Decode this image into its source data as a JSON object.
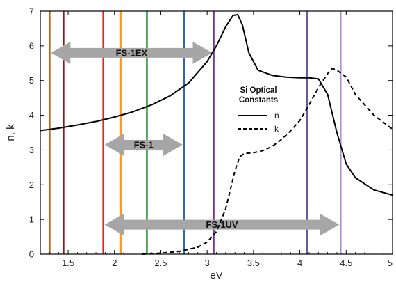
{
  "chart_data": {
    "type": "line",
    "xlabel": "eV",
    "ylabel": "n, k",
    "xlim": [
      1.2,
      5.0
    ],
    "ylim": [
      0,
      7
    ],
    "x_ticks": [
      "1.5",
      "2",
      "2.5",
      "3",
      "3.5",
      "4",
      "4.5",
      "5"
    ],
    "y_ticks": [
      "0",
      "1",
      "2",
      "3",
      "4",
      "5",
      "6",
      "7"
    ],
    "legend": {
      "title_line1": "Si Optical",
      "title_line2": "Constants",
      "placement": "right"
    },
    "series": [
      {
        "name": "n",
        "style": "solid",
        "color": "#000000",
        "x": [
          1.2,
          1.4,
          1.6,
          1.8,
          2.0,
          2.2,
          2.4,
          2.6,
          2.8,
          3.0,
          3.1,
          3.2,
          3.28,
          3.33,
          3.38,
          3.45,
          3.55,
          3.7,
          3.85,
          4.0,
          4.1,
          4.2,
          4.3,
          4.4,
          4.5,
          4.6,
          4.8,
          5.0
        ],
        "y": [
          3.56,
          3.63,
          3.72,
          3.82,
          3.95,
          4.1,
          4.3,
          4.56,
          4.93,
          5.55,
          6.0,
          6.55,
          6.88,
          6.9,
          6.6,
          5.8,
          5.3,
          5.15,
          5.1,
          5.08,
          5.08,
          5.05,
          4.6,
          3.5,
          2.6,
          2.2,
          1.85,
          1.7
        ]
      },
      {
        "name": "k",
        "style": "dashed",
        "color": "#000000",
        "x": [
          2.3,
          2.5,
          2.7,
          2.9,
          3.0,
          3.1,
          3.2,
          3.3,
          3.35,
          3.4,
          3.5,
          3.6,
          3.7,
          3.8,
          3.9,
          4.0,
          4.1,
          4.2,
          4.3,
          4.35,
          4.4,
          4.5,
          4.6,
          4.8,
          5.0
        ],
        "y": [
          0.0,
          0.03,
          0.08,
          0.2,
          0.35,
          0.65,
          1.3,
          2.4,
          2.8,
          2.9,
          2.92,
          2.98,
          3.1,
          3.3,
          3.55,
          3.85,
          4.3,
          4.8,
          5.2,
          5.35,
          5.3,
          5.1,
          4.6,
          4.0,
          3.6
        ]
      }
    ],
    "vertical_lines": [
      {
        "x": 1.3,
        "color": "#b5651d"
      },
      {
        "x": 1.45,
        "color": "#8b1a1a"
      },
      {
        "x": 1.88,
        "color": "#e8231e"
      },
      {
        "x": 2.07,
        "color": "#f39c33"
      },
      {
        "x": 2.35,
        "color": "#2f9a3b"
      },
      {
        "x": 2.75,
        "color": "#2f67b1"
      },
      {
        "x": 3.07,
        "color": "#7b2f9e"
      },
      {
        "x": 4.08,
        "color": "#6b59a8"
      },
      {
        "x": 4.44,
        "color": "#b48fd0"
      }
    ],
    "arrows": [
      {
        "label": "FS-1EX",
        "x_start": 1.3,
        "x_end": 3.07,
        "y": 5.8
      },
      {
        "label": "FS-1",
        "x_start": 1.88,
        "x_end": 2.75,
        "y": 3.15
      },
      {
        "label": "FS-1UV",
        "x_start": 1.88,
        "x_end": 4.44,
        "y": 0.85
      }
    ],
    "arrow_color": "#a6a6a6"
  }
}
